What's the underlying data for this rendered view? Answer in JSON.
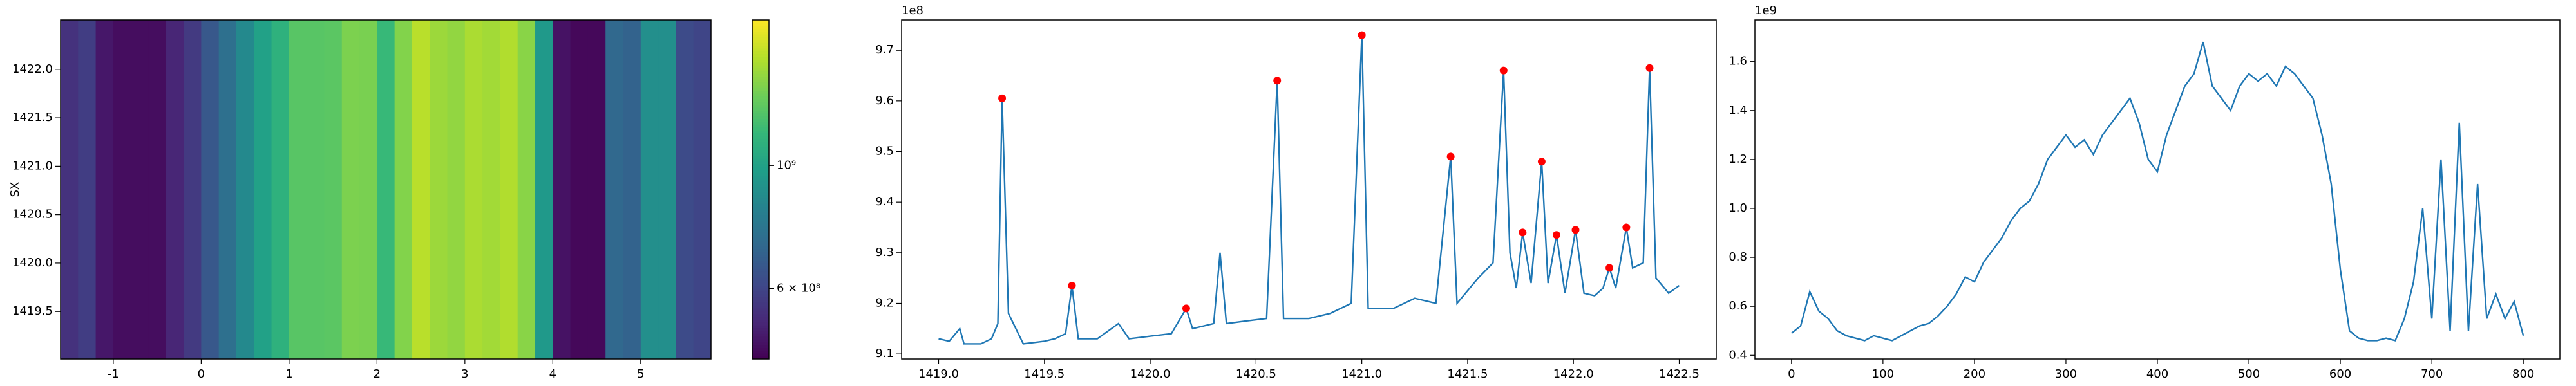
{
  "chart_data": [
    {
      "type": "heatmap",
      "ylabel": "SX",
      "colormap": "viridis",
      "log_color": true,
      "x": [
        -1.5,
        -1.3,
        -1.1,
        -0.9,
        -0.7,
        -0.5,
        -0.3,
        -0.1,
        0.1,
        0.3,
        0.5,
        0.7,
        0.9,
        1.1,
        1.3,
        1.5,
        1.7,
        1.9,
        2.1,
        2.3,
        2.5,
        2.7,
        2.9,
        3.1,
        3.3,
        3.5,
        3.7,
        3.9,
        4.1,
        4.3,
        4.5,
        4.7,
        4.9,
        5.1,
        5.3,
        5.5,
        5.7
      ],
      "values": [
        550000000,
        580000000,
        490000000,
        470000000,
        470000000,
        470000000,
        520000000,
        570000000,
        660000000,
        750000000,
        870000000,
        1000000000,
        1100000000,
        1260000000,
        1260000000,
        1270000000,
        1380000000,
        1370000000,
        1150000000,
        1400000000,
        1580000000,
        1480000000,
        1450000000,
        1530000000,
        1500000000,
        1550000000,
        1420000000,
        950000000,
        480000000,
        460000000,
        460000000,
        720000000,
        700000000,
        900000000,
        900000000,
        620000000,
        600000000
      ],
      "xlim": [
        -1.6,
        5.8
      ],
      "xticks": [
        -1,
        0,
        1,
        2,
        3,
        4,
        5
      ],
      "ylim": [
        1419.01,
        1422.51
      ],
      "yticks": [
        1419.5,
        {
          "value": 1420.0,
          "label": "1420.0"
        },
        1420.5,
        {
          "value": 1421.0,
          "label": "1421.0"
        },
        1421.5,
        {
          "value": 1422.0,
          "label": "1422.0"
        }
      ],
      "clim": [
        448000000,
        1830000000
      ],
      "cticks": [
        {
          "value": 600000000,
          "label": "6 × 10⁸"
        },
        {
          "value": 1000000000,
          "label": "10⁹"
        }
      ]
    },
    {
      "type": "line",
      "y_offset_label": "1e8",
      "color": "#1f77b4",
      "peak_color": "#ff0000",
      "x": [
        1419.0,
        1419.05,
        1419.1,
        1419.12,
        1419.2,
        1419.25,
        1419.28,
        1419.3,
        1419.33,
        1419.4,
        1419.5,
        1419.55,
        1419.6,
        1419.63,
        1419.66,
        1419.75,
        1419.85,
        1419.9,
        1420.0,
        1420.1,
        1420.17,
        1420.2,
        1420.3,
        1420.33,
        1420.36,
        1420.45,
        1420.55,
        1420.6,
        1420.63,
        1420.75,
        1420.85,
        1420.95,
        1421.0,
        1421.03,
        1421.15,
        1421.25,
        1421.35,
        1421.42,
        1421.45,
        1421.55,
        1421.62,
        1421.67,
        1421.7,
        1421.73,
        1421.76,
        1421.8,
        1421.85,
        1421.88,
        1421.92,
        1421.96,
        1422.01,
        1422.05,
        1422.1,
        1422.14,
        1422.17,
        1422.2,
        1422.25,
        1422.28,
        1422.33,
        1422.36,
        1422.39,
        1422.45,
        1422.5
      ],
      "values": [
        9.13,
        9.125,
        9.15,
        9.12,
        9.12,
        9.13,
        9.16,
        9.605,
        9.18,
        9.12,
        9.125,
        9.13,
        9.14,
        9.235,
        9.13,
        9.13,
        9.16,
        9.13,
        9.135,
        9.14,
        9.19,
        9.15,
        9.16,
        9.3,
        9.16,
        9.165,
        9.17,
        9.64,
        9.17,
        9.17,
        9.18,
        9.2,
        9.73,
        9.19,
        9.19,
        9.21,
        9.2,
        9.49,
        9.2,
        9.25,
        9.28,
        9.66,
        9.3,
        9.23,
        9.34,
        9.24,
        9.48,
        9.24,
        9.335,
        9.22,
        9.345,
        9.22,
        9.215,
        9.23,
        9.27,
        9.23,
        9.35,
        9.27,
        9.28,
        9.665,
        9.25,
        9.22,
        9.235
      ],
      "peaks_x": [
        1419.3,
        1419.63,
        1420.17,
        1420.6,
        1421.0,
        1421.42,
        1421.67,
        1421.76,
        1421.85,
        1421.92,
        1422.01,
        1422.17,
        1422.25,
        1422.36
      ],
      "peaks": [
        9.605,
        9.235,
        9.19,
        9.64,
        9.73,
        9.49,
        9.66,
        9.34,
        9.48,
        9.335,
        9.345,
        9.27,
        9.35,
        9.665
      ],
      "xlim": [
        1418.825,
        1422.675
      ],
      "xticks": [
        {
          "value": 1419.0,
          "label": "1419.0"
        },
        1419.5,
        {
          "value": 1420.0,
          "label": "1420.0"
        },
        1420.5,
        {
          "value": 1421.0,
          "label": "1421.0"
        },
        1421.5,
        {
          "value": 1422.0,
          "label": "1422.0"
        },
        1422.5
      ],
      "ylim": [
        9.09,
        9.76
      ],
      "yticks": [
        9.1,
        9.2,
        9.3,
        9.4,
        9.5,
        9.6,
        9.7
      ]
    },
    {
      "type": "line",
      "y_offset_label": "1e9",
      "color": "#1f77b4",
      "x": [
        0,
        10,
        20,
        30,
        40,
        50,
        60,
        70,
        80,
        90,
        100,
        110,
        120,
        130,
        140,
        150,
        160,
        170,
        180,
        190,
        200,
        210,
        220,
        230,
        240,
        250,
        260,
        270,
        280,
        290,
        300,
        310,
        320,
        330,
        340,
        350,
        360,
        370,
        380,
        390,
        400,
        410,
        420,
        430,
        440,
        450,
        460,
        470,
        480,
        490,
        500,
        510,
        520,
        530,
        540,
        550,
        560,
        570,
        580,
        590,
        600,
        610,
        620,
        630,
        640,
        650,
        660,
        670,
        680,
        690,
        700,
        710,
        720,
        730,
        740,
        750,
        760,
        770,
        780,
        790,
        800
      ],
      "values": [
        0.49,
        0.52,
        0.66,
        0.58,
        0.55,
        0.5,
        0.48,
        0.47,
        0.46,
        0.48,
        0.47,
        0.46,
        0.48,
        0.5,
        0.52,
        0.53,
        0.56,
        0.6,
        0.65,
        0.72,
        0.7,
        0.78,
        0.83,
        0.88,
        0.95,
        1.0,
        1.03,
        1.1,
        1.2,
        1.25,
        1.3,
        1.25,
        1.28,
        1.22,
        1.3,
        1.35,
        1.4,
        1.45,
        1.35,
        1.2,
        1.15,
        1.3,
        1.4,
        1.5,
        1.55,
        1.68,
        1.5,
        1.45,
        1.4,
        1.5,
        1.55,
        1.52,
        1.55,
        1.5,
        1.58,
        1.55,
        1.5,
        1.45,
        1.3,
        1.1,
        0.75,
        0.5,
        0.47,
        0.46,
        0.46,
        0.47,
        0.46,
        0.55,
        0.7,
        1.0,
        0.55,
        1.2,
        0.5,
        1.35,
        0.5,
        1.1,
        0.55,
        0.65,
        0.55,
        0.62,
        0.48
      ],
      "xlim": [
        -40,
        840
      ],
      "xticks": [
        0,
        100,
        200,
        300,
        400,
        500,
        600,
        700,
        800
      ],
      "ylim": [
        0.385,
        1.77
      ],
      "yticks": [
        0.4,
        0.6,
        0.8,
        {
          "value": 1.0,
          "label": "1.0"
        },
        1.2,
        1.4,
        1.6
      ]
    }
  ]
}
